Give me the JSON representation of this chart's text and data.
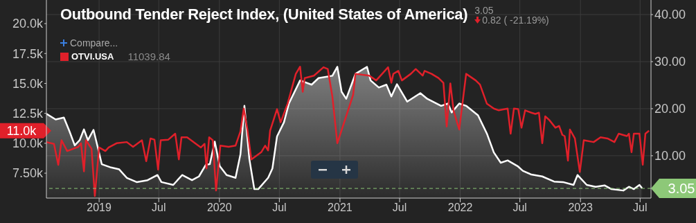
{
  "chart_data": {
    "type": "line",
    "title": "Outbound Tender Reject Index, (United States of America)",
    "annotations": [
      "3.05",
      "0.82 ( -21.19%)",
      "Compare...",
      "11039.84",
      "11.0k"
    ],
    "xlim": [
      "2018-07-25",
      "2023-08-03"
    ],
    "xticks": [
      "2019",
      {
        "value": "2019-07",
        "label": "Jul"
      },
      "2020",
      {
        "value": "2020-07",
        "label": "Jul"
      },
      "2021",
      {
        "value": "2021-07",
        "label": "Jul"
      },
      "2022",
      {
        "value": "2022-07",
        "label": "Jul"
      },
      "2023",
      {
        "value": "2023-07",
        "label": "Jul"
      }
    ],
    "ylim": [
      5420,
      21970
    ],
    "yticks": [
      {
        "value": 7500,
        "label": "7.50k"
      },
      {
        "value": 10000,
        "label": "10.0k"
      },
      {
        "value": 12500,
        "label": "12.5k"
      },
      {
        "value": 15000,
        "label": "15.0k"
      },
      {
        "value": 17500,
        "label": "17.5k"
      },
      {
        "value": 20000,
        "label": "20.0k"
      }
    ],
    "y2lim": [
      1.0,
      43.1
    ],
    "y2ticks": [
      {
        "value": 10,
        "label": "10.00"
      },
      {
        "value": 20,
        "label": "20.00"
      },
      {
        "value": 30,
        "label": "30.00"
      },
      {
        "value": 40,
        "label": "40.00"
      }
    ],
    "grid": true,
    "legend": "top left",
    "marker": "none",
    "line_style": "solid",
    "ref_lines": [
      {
        "axis": "y2",
        "value": 3.05,
        "label": "3.05",
        "color": "#8dc878",
        "line_style": "dashed"
      }
    ],
    "series": [
      {
        "name": "OTVI.USA",
        "color": "#e0202a",
        "x": [
          "2018-07-25",
          "2018-08-17",
          "2018-08-30",
          "2018-09-09",
          "2018-09-26",
          "2018-10-30",
          "2018-11-07",
          "2018-11-16",
          "2018-11-22",
          "2018-12-09",
          "2018-12-19",
          "2019-01-01",
          "2019-01-20",
          "2019-01-30",
          "2019-02-23",
          "2019-03-26",
          "2019-04-14",
          "2019-05-11",
          "2019-05-24",
          "2019-06-06",
          "2019-06-18",
          "2019-06-29",
          "2019-07-07",
          "2019-07-30",
          "2019-08-20",
          "2019-08-31",
          "2019-09-08",
          "2019-09-25",
          "2019-10-22",
          "2019-11-06",
          "2019-11-17",
          "2019-11-23",
          "2019-12-01",
          "2019-12-12",
          "2019-12-22",
          "2020-01-04",
          "2020-01-29",
          "2020-02-19",
          "2020-03-05",
          "2020-03-15",
          "2020-03-26",
          "2020-04-07",
          "2020-05-07",
          "2020-05-19",
          "2020-05-28",
          "2020-06-03",
          "2020-06-24",
          "2020-07-05",
          "2020-07-26",
          "2020-08-20",
          "2020-09-02",
          "2020-09-10",
          "2020-09-16",
          "2020-10-14",
          "2020-11-12",
          "2020-11-25",
          "2020-12-09",
          "2020-12-24",
          "2021-02-10",
          "2021-02-17",
          "2021-03-31",
          "2021-04-21",
          "2021-05-27",
          "2021-06-06",
          "2021-06-12",
          "2021-06-27",
          "2021-07-08",
          "2021-08-04",
          "2021-08-19",
          "2021-09-09",
          "2021-09-15",
          "2021-10-06",
          "2021-10-27",
          "2021-11-11",
          "2021-11-21",
          "2021-12-02",
          "2021-12-12",
          "2021-12-29",
          "2022-01-19",
          "2022-02-17",
          "2022-03-02",
          "2022-03-23",
          "2022-04-13",
          "2022-04-28",
          "2022-05-25",
          "2022-06-03",
          "2022-06-13",
          "2022-06-26",
          "2022-07-06",
          "2022-07-17",
          "2022-08-05",
          "2022-08-17",
          "2022-08-28",
          "2022-09-07",
          "2022-09-16",
          "2022-09-28",
          "2022-10-17",
          "2022-10-28",
          "2022-11-07",
          "2022-11-14",
          "2022-11-24",
          "2022-11-30",
          "2022-12-15",
          "2022-12-30",
          "2023-01-11",
          "2023-02-10",
          "2023-03-03",
          "2023-03-24",
          "2023-04-14",
          "2023-04-27",
          "2023-05-22",
          "2023-05-28",
          "2023-06-05",
          "2023-06-12",
          "2023-06-29",
          "2023-07-09",
          "2023-07-17",
          "2023-07-28"
        ],
        "values": [
          10100,
          9950,
          8200,
          10250,
          9350,
          9700,
          10000,
          7650,
          10250,
          9550,
          5600,
          9650,
          9350,
          9650,
          10000,
          10100,
          9700,
          10250,
          8500,
          10400,
          10300,
          7800,
          10250,
          10300,
          10800,
          8650,
          10500,
          10500,
          9950,
          9650,
          9950,
          7900,
          10500,
          10250,
          6050,
          9800,
          9700,
          9800,
          11000,
          12900,
          11150,
          8650,
          9250,
          9800,
          9400,
          11050,
          12850,
          11750,
          13300,
          15800,
          16400,
          14300,
          15450,
          15650,
          16350,
          16200,
          13900,
          10000,
          14050,
          15800,
          15650,
          15250,
          16350,
          15050,
          15800,
          16050,
          15250,
          15800,
          16200,
          15650,
          16050,
          15800,
          15450,
          15050,
          11400,
          15000,
          12700,
          11150,
          15800,
          15250,
          14900,
          13300,
          12900,
          12750,
          12900,
          10800,
          12900,
          12850,
          11300,
          12750,
          12550,
          12450,
          12550,
          10000,
          12250,
          11950,
          11300,
          11450,
          10700,
          10600,
          8550,
          11150,
          10400,
          7600,
          10250,
          10100,
          10500,
          10400,
          10100,
          10800,
          10600,
          10800,
          9250,
          10800,
          10800,
          8200,
          10800,
          11050
        ]
      },
      {
        "type": "area",
        "axis": "y2",
        "color": "#ffffff",
        "x": [
          "2018-07-25",
          "2018-08-22",
          "2018-09-16",
          "2018-10-03",
          "2018-10-19",
          "2018-11-03",
          "2018-11-16",
          "2018-11-28",
          "2018-12-15",
          "2018-12-30",
          "2019-01-09",
          "2019-02-06",
          "2019-03-03",
          "2019-03-26",
          "2019-04-25",
          "2019-05-28",
          "2019-06-27",
          "2019-07-09",
          "2019-08-14",
          "2019-09-10",
          "2019-10-10",
          "2019-10-31",
          "2019-11-21",
          "2019-12-03",
          "2019-12-18",
          "2020-01-02",
          "2020-01-23",
          "2020-02-19",
          "2020-03-05",
          "2020-03-17",
          "2020-04-01",
          "2020-04-16",
          "2020-04-28",
          "2020-05-28",
          "2020-06-10",
          "2020-06-24",
          "2020-07-15",
          "2020-07-30",
          "2020-09-02",
          "2020-10-07",
          "2020-10-28",
          "2020-12-09",
          "2020-12-24",
          "2021-01-06",
          "2021-01-20",
          "2021-02-17",
          "2021-03-24",
          "2021-04-04",
          "2021-04-29",
          "2021-05-22",
          "2021-06-06",
          "2021-06-23",
          "2021-07-24",
          "2021-09-02",
          "2021-09-23",
          "2021-11-04",
          "2021-11-25",
          "2021-12-06",
          "2021-12-29",
          "2022-01-19",
          "2022-02-24",
          "2022-03-23",
          "2022-04-13",
          "2022-05-04",
          "2022-05-25",
          "2022-06-24",
          "2022-07-10",
          "2022-08-05",
          "2022-09-07",
          "2022-10-13",
          "2022-11-09",
          "2022-12-11",
          "2022-12-23",
          "2023-01-20",
          "2023-02-16",
          "2023-03-15",
          "2023-04-05",
          "2023-05-11",
          "2023-05-28",
          "2023-06-12",
          "2023-06-29",
          "2023-07-07"
        ],
        "values": [
          18.9,
          17.7,
          18.1,
          15.2,
          12.2,
          13.3,
          15.6,
          13.3,
          15.5,
          11.2,
          8.2,
          7.5,
          7.1,
          5.3,
          4.4,
          4.8,
          5.9,
          4.4,
          3.8,
          5.9,
          4.8,
          5.6,
          8.1,
          8.2,
          13.0,
          7.8,
          5.9,
          5.3,
          10.3,
          20.6,
          9.3,
          2.9,
          2.9,
          5.3,
          7.3,
          14.1,
          17.1,
          21.1,
          26.0,
          25.1,
          26.5,
          27.0,
          28.9,
          23.6,
          22.1,
          27.4,
          28.9,
          26.0,
          24.5,
          25.1,
          22.6,
          25.2,
          21.5,
          23.3,
          22.1,
          20.6,
          21.1,
          19.2,
          21.1,
          20.6,
          18.6,
          14.7,
          10.7,
          8.5,
          9.0,
          7.8,
          6.8,
          6.0,
          5.6,
          4.5,
          4.4,
          3.8,
          5.9,
          3.8,
          3.4,
          3.7,
          2.9,
          2.6,
          3.4,
          2.9,
          3.8,
          3.1
        ]
      }
    ]
  }
}
